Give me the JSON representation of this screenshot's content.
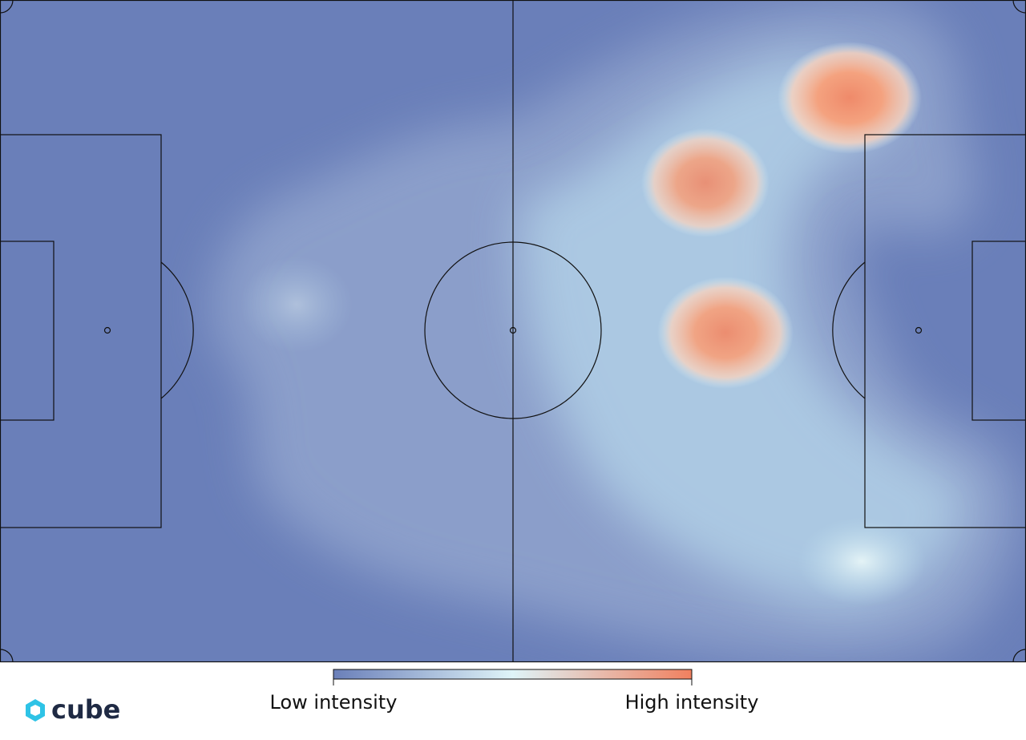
{
  "chart_data": {
    "type": "heatmap",
    "colorbar": {
      "low_label": "Low intensity",
      "high_label": "High intensity",
      "colors": [
        "#6a7fb9",
        "#dff4f8",
        "#f0805f"
      ]
    },
    "pitch_color": "#6a7fb9"
  },
  "brand": {
    "text": "cube"
  }
}
